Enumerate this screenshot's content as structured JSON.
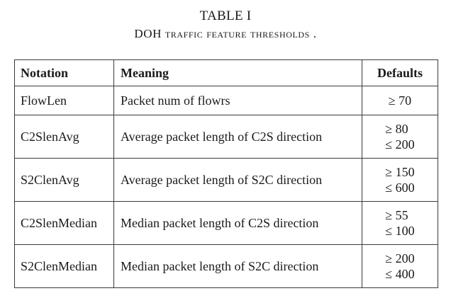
{
  "caption": {
    "label": "TABLE I",
    "title": "DOH traffic feature thresholds ."
  },
  "table": {
    "headers": [
      "Notation",
      "Meaning",
      "Defaults"
    ],
    "rows": [
      {
        "notation": "FlowLen",
        "meaning": "Packet num of flowrs",
        "lower": "≥ 70",
        "upper": ""
      },
      {
        "notation": "C2SlenAvg",
        "meaning": "Average packet length of C2S direction",
        "lower": "≥ 80",
        "upper": "≤ 200"
      },
      {
        "notation": "S2ClenAvg",
        "meaning": "Average packet length of S2C direction",
        "lower": "≥ 150",
        "upper": "≤ 600"
      },
      {
        "notation": "C2SlenMedian",
        "meaning": "Median packet length of C2S direction",
        "lower": "≥ 55",
        "upper": "≤ 100"
      },
      {
        "notation": "S2ClenMedian",
        "meaning": "Median packet length of S2C direction",
        "lower": "≥ 200",
        "upper": "≤ 400"
      }
    ]
  }
}
